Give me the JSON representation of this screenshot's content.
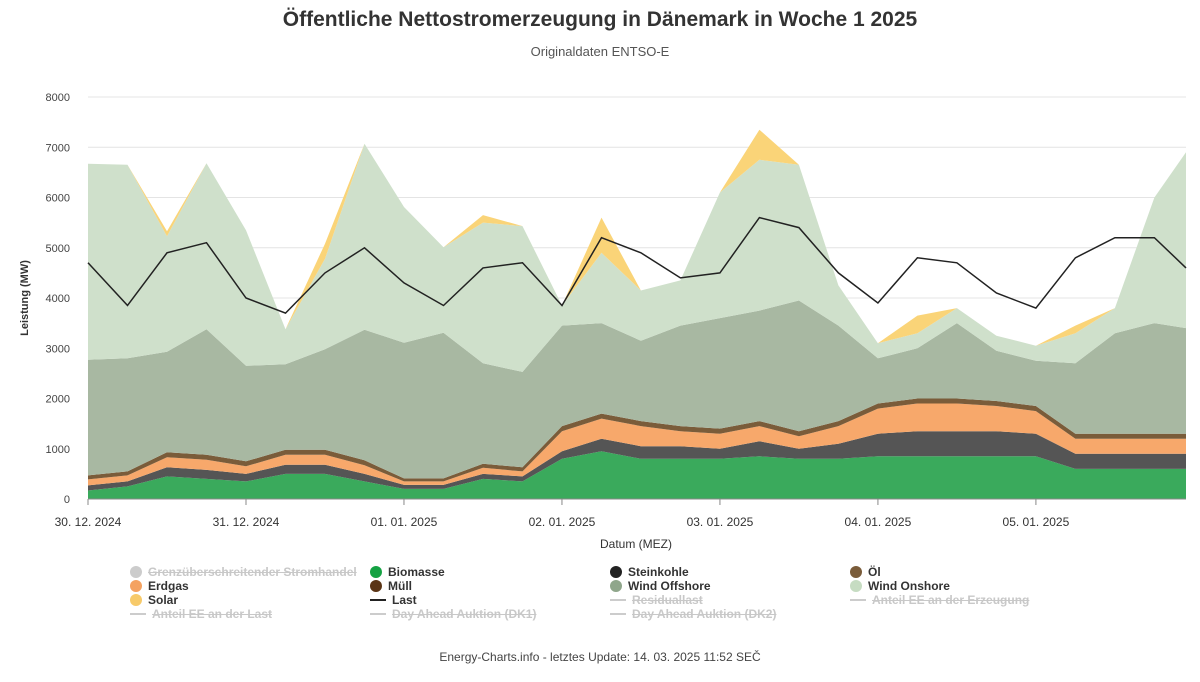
{
  "chart_data": {
    "type": "area",
    "title": "Öffentliche Nettostromerzeugung in Dänemark in Woche 1 2025",
    "subtitle": "Originaldaten ENTSO-E",
    "xlabel": "Datum (MEZ)",
    "ylabel": "Leistung (MW)",
    "ylim": [
      0,
      8000
    ],
    "yticks": [
      "0",
      "1000",
      "2000",
      "3000",
      "4000",
      "5000",
      "6000",
      "7000",
      "8000"
    ],
    "x_tick_labels": [
      "30. 12. 2024",
      "31. 12. 2024",
      "01. 01. 2025",
      "02. 01. 2025",
      "03. 01. 2025",
      "04. 01. 2025",
      "05. 01. 2025"
    ],
    "x_unit": "days since 30. 12. 2024 00:00",
    "x": [
      0,
      0.25,
      0.5,
      0.75,
      1,
      1.25,
      1.5,
      1.75,
      2,
      2.25,
      2.5,
      2.75,
      3,
      3.25,
      3.5,
      3.75,
      4,
      4.25,
      4.5,
      4.75,
      5,
      5.25,
      5.5,
      5.75,
      6,
      6.25,
      6.5,
      6.75,
      6.95
    ],
    "grid": true,
    "legend_position": "bottom",
    "stack_order": [
      "Biomasse",
      "Steinkohle",
      "Erdgas",
      "Öl",
      "Wind Offshore",
      "Wind Onshore",
      "Solar"
    ],
    "series": [
      {
        "name": "Biomasse",
        "color": "#3aaa5c",
        "values": [
          170,
          250,
          450,
          400,
          350,
          500,
          500,
          350,
          200,
          200,
          400,
          350,
          800,
          950,
          800,
          800,
          800,
          850,
          800,
          800,
          850,
          850,
          850,
          850,
          850,
          600,
          600,
          600,
          600
        ]
      },
      {
        "name": "Steinkohle",
        "color": "#555555",
        "values": [
          100,
          100,
          180,
          180,
          150,
          180,
          180,
          150,
          80,
          80,
          100,
          100,
          150,
          250,
          250,
          250,
          200,
          300,
          200,
          300,
          450,
          500,
          500,
          500,
          450,
          300,
          300,
          300,
          300
        ]
      },
      {
        "name": "Erdgas",
        "color": "#f7a86b",
        "values": [
          120,
          120,
          200,
          200,
          150,
          200,
          200,
          170,
          70,
          70,
          120,
          100,
          400,
          400,
          400,
          300,
          300,
          300,
          250,
          350,
          500,
          550,
          550,
          500,
          450,
          300,
          300,
          300,
          300
        ]
      },
      {
        "name": "Öl",
        "color": "#7a5c3a",
        "values": [
          80,
          80,
          100,
          100,
          100,
          100,
          100,
          100,
          60,
          60,
          80,
          80,
          100,
          100,
          100,
          100,
          100,
          100,
          100,
          100,
          100,
          100,
          100,
          100,
          100,
          100,
          100,
          100,
          100
        ]
      },
      {
        "name": "Wind Offshore",
        "color": "#a8b8a2",
        "values": [
          2300,
          2250,
          2000,
          2500,
          1900,
          1700,
          2000,
          2600,
          2700,
          2900,
          2000,
          1900,
          2000,
          1800,
          1600,
          2000,
          2200,
          2200,
          2600,
          1900,
          900,
          1000,
          1500,
          1000,
          900,
          1400,
          2000,
          2200,
          2100
        ]
      },
      {
        "name": "Wind Onshore",
        "color": "#cfe0cb",
        "values": [
          3900,
          3850,
          2300,
          3300,
          2700,
          700,
          1800,
          3700,
          2700,
          1700,
          2800,
          2900,
          400,
          1400,
          1000,
          900,
          2500,
          3000,
          2700,
          800,
          300,
          300,
          300,
          300,
          300,
          600,
          500,
          2500,
          3500
        ]
      },
      {
        "name": "Solar",
        "color": "#fad478",
        "values": [
          0,
          0,
          100,
          0,
          0,
          0,
          300,
          0,
          0,
          0,
          150,
          0,
          0,
          700,
          0,
          0,
          0,
          600,
          0,
          0,
          0,
          350,
          0,
          0,
          0,
          150,
          0,
          0,
          0
        ]
      },
      {
        "name": "Last",
        "color": "#222222",
        "type": "line",
        "values": [
          4700,
          3850,
          4900,
          5100,
          4000,
          3700,
          4500,
          5000,
          4300,
          3850,
          4600,
          4700,
          3850,
          5200,
          4900,
          4400,
          4500,
          5600,
          5400,
          4500,
          3900,
          4800,
          4700,
          4100,
          3800,
          4800,
          5200,
          5200,
          4600
        ]
      }
    ],
    "legend": [
      {
        "label": "Grenzüberschreitender Stromhandel",
        "color": "#cccccc",
        "kind": "marker",
        "hidden": true
      },
      {
        "label": "Biomasse",
        "color": "#15a243",
        "kind": "marker",
        "hidden": false
      },
      {
        "label": "Steinkohle",
        "color": "#222222",
        "kind": "marker",
        "hidden": false
      },
      {
        "label": "Öl",
        "color": "#7a5c3a",
        "kind": "marker",
        "hidden": false
      },
      {
        "label": "Erdgas",
        "color": "#f4a261",
        "kind": "marker",
        "hidden": false
      },
      {
        "label": "Müll",
        "color": "#5a3415",
        "kind": "marker",
        "hidden": false
      },
      {
        "label": "Wind Offshore",
        "color": "#8fa68b",
        "kind": "marker",
        "hidden": false
      },
      {
        "label": "Wind Onshore",
        "color": "#c6dcc2",
        "kind": "marker",
        "hidden": false
      },
      {
        "label": "Solar",
        "color": "#f7ca6a",
        "kind": "marker",
        "hidden": false
      },
      {
        "label": "Last",
        "color": "#222222",
        "kind": "line",
        "hidden": false
      },
      {
        "label": "Residuallast",
        "color": "#cccccc",
        "kind": "line",
        "hidden": true
      },
      {
        "label": "Anteil EE an der Erzeugung",
        "color": "#cccccc",
        "kind": "line",
        "hidden": true
      },
      {
        "label": "Anteil EE an der Last",
        "color": "#cccccc",
        "kind": "line",
        "hidden": true
      },
      {
        "label": "Day Ahead Auktion (DK1)",
        "color": "#cccccc",
        "kind": "line",
        "hidden": true
      },
      {
        "label": "Day Ahead Auktion (DK2)",
        "color": "#cccccc",
        "kind": "line",
        "hidden": true
      }
    ],
    "credits": "Energy-Charts.info - letztes Update: 14. 03. 2025 11:52 SEČ"
  }
}
